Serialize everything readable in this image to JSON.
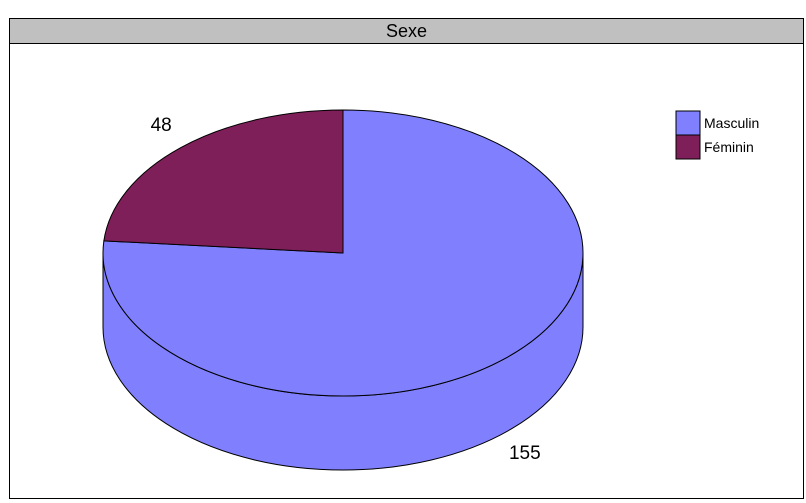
{
  "chart_data": {
    "type": "pie",
    "title": "Sexe",
    "slices": [
      {
        "label": "Masculin",
        "value": 155,
        "color": "#8080ff"
      },
      {
        "label": "Féminin",
        "value": 48,
        "color": "#7f1f5a"
      }
    ],
    "legend_position": "top-right",
    "three_d": true
  }
}
